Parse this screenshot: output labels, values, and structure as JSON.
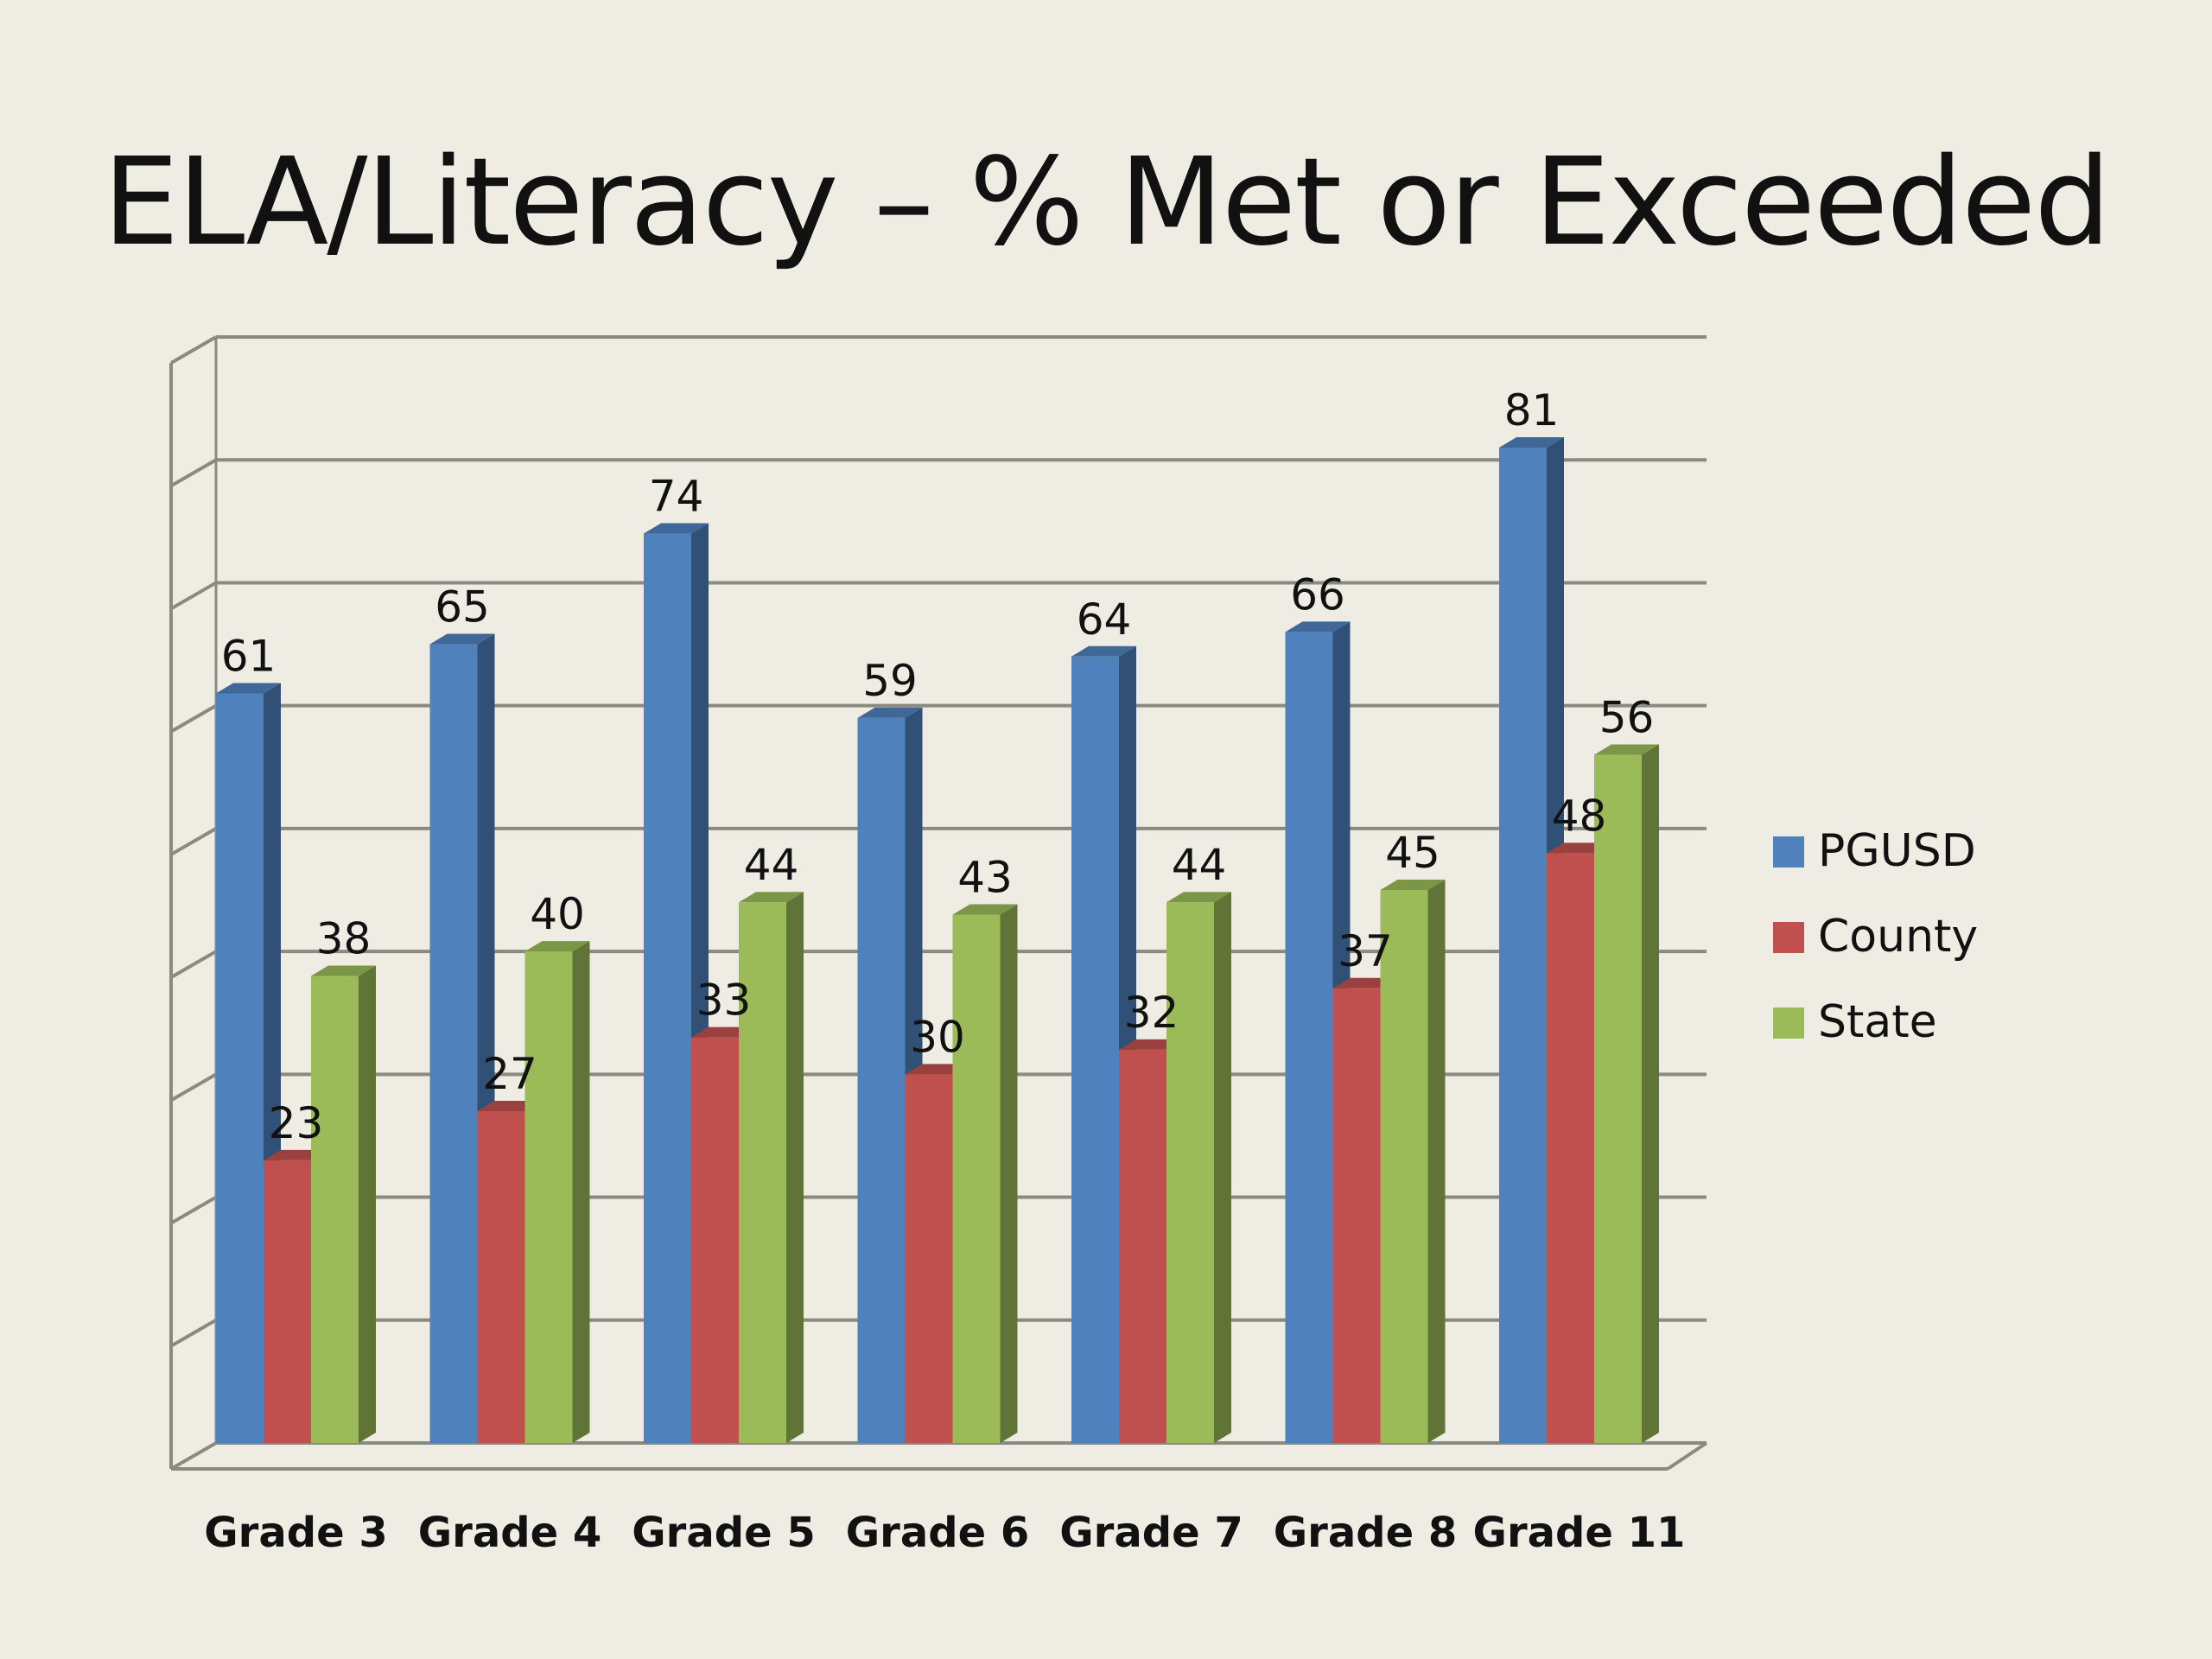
{
  "chart_data": {
    "type": "bar",
    "title": "ELA/Literacy – % Met or Exceeded",
    "categories": [
      "Grade 3",
      "Grade 4",
      "Grade 5",
      "Grade 6",
      "Grade 7",
      "Grade 8",
      "Grade 11"
    ],
    "series": [
      {
        "name": "PGUSD",
        "values": [
          61,
          65,
          74,
          59,
          64,
          66,
          81
        ],
        "color": "#4f81bd"
      },
      {
        "name": "County",
        "values": [
          23,
          27,
          33,
          30,
          32,
          37,
          48
        ],
        "color": "#c0504d"
      },
      {
        "name": "State",
        "values": [
          38,
          40,
          44,
          43,
          44,
          45,
          56
        ],
        "color": "#9bbb59"
      }
    ],
    "ylim": [
      0,
      90
    ],
    "y_gridline_step": 10,
    "grid": true,
    "xlabel": "",
    "ylabel": "",
    "legend_position": "right"
  }
}
